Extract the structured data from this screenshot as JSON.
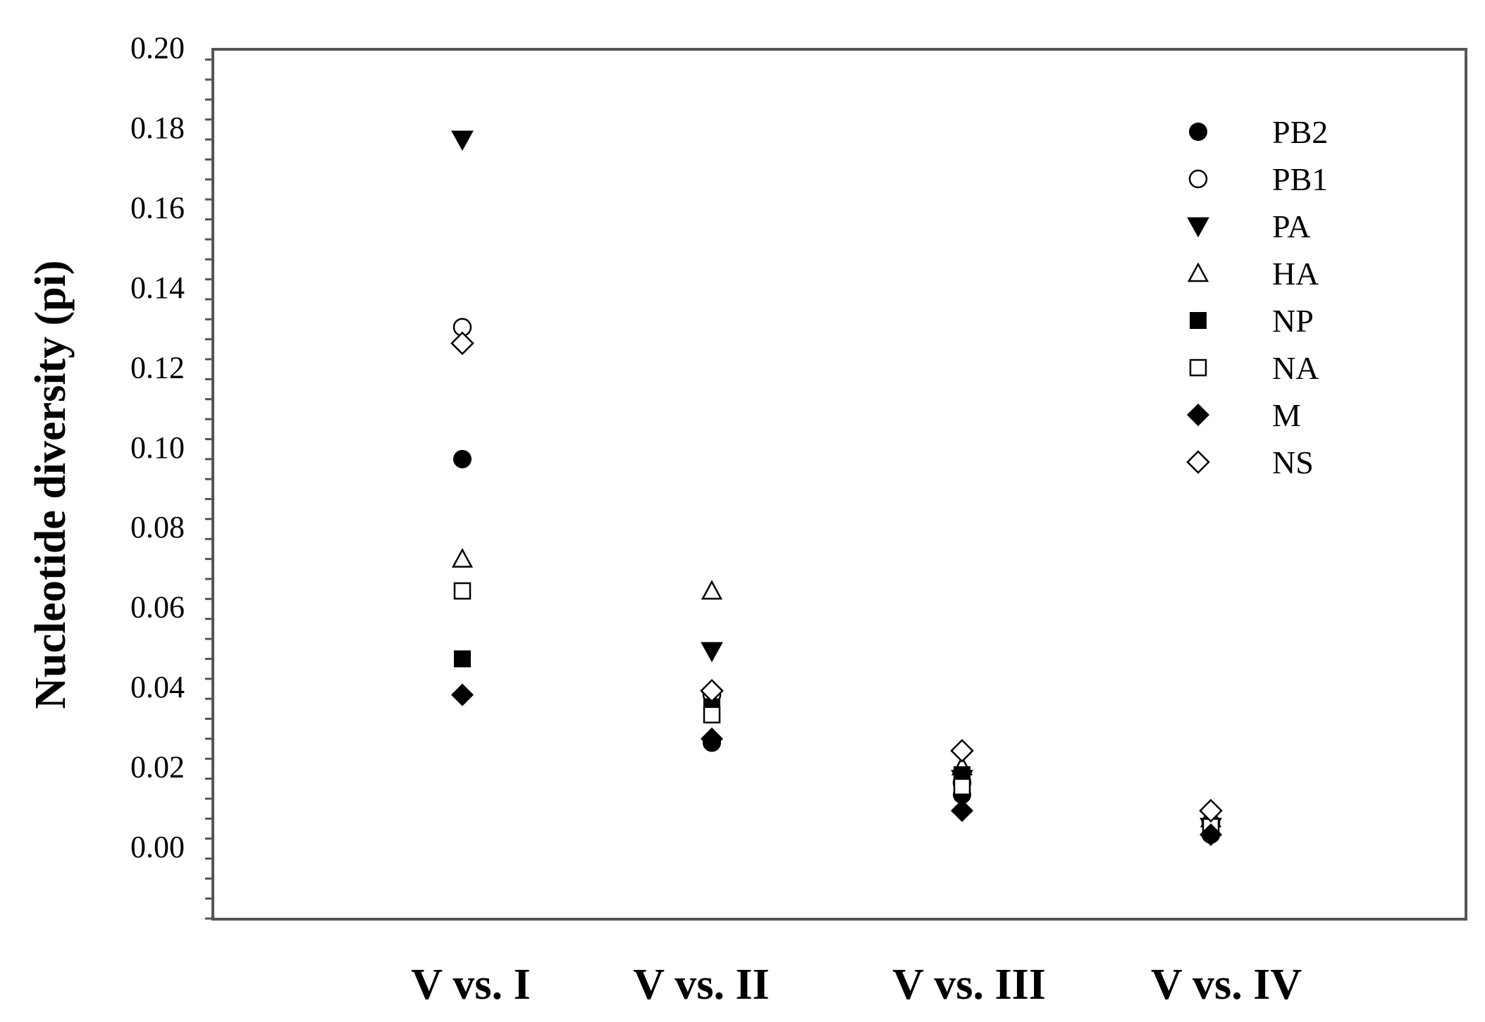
{
  "chart_data": {
    "type": "scatter",
    "ylabel": "Nucleotide diversity (pi)",
    "ylim": [
      -0.018,
      0.2
    ],
    "y_ticks": [
      "0.00",
      "0.02",
      "0.04",
      "0.06",
      "0.08",
      "0.10",
      "0.12",
      "0.14",
      "0.16",
      "0.18",
      "0.20"
    ],
    "y_minor_step": 0.005,
    "categories": [
      "V vs. I",
      "V vs. II",
      "V vs. III",
      "V vs. IV"
    ],
    "legend_position": "top-right",
    "grid": false,
    "series": [
      {
        "name": "PB2",
        "marker": "circle-filled",
        "values": [
          0.097,
          0.026,
          0.013,
          0.003
        ]
      },
      {
        "name": "PB1",
        "marker": "circle-open",
        "values": [
          0.13,
          0.038,
          0.016,
          0.006
        ]
      },
      {
        "name": "PA",
        "marker": "triangle-down-filled",
        "values": [
          0.177,
          0.049,
          0.017,
          0.005
        ]
      },
      {
        "name": "HA",
        "marker": "triangle-up-open",
        "values": [
          0.072,
          0.064,
          0.02,
          0.007
        ]
      },
      {
        "name": "NP",
        "marker": "square-filled",
        "values": [
          0.047,
          0.035,
          0.018,
          0.004
        ]
      },
      {
        "name": "NA",
        "marker": "square-open",
        "values": [
          0.064,
          0.033,
          0.015,
          0.005
        ]
      },
      {
        "name": "M",
        "marker": "diamond-filled",
        "values": [
          0.038,
          0.027,
          0.009,
          0.003
        ]
      },
      {
        "name": "NS",
        "marker": "diamond-open",
        "values": [
          0.126,
          0.039,
          0.024,
          0.009
        ]
      }
    ]
  }
}
